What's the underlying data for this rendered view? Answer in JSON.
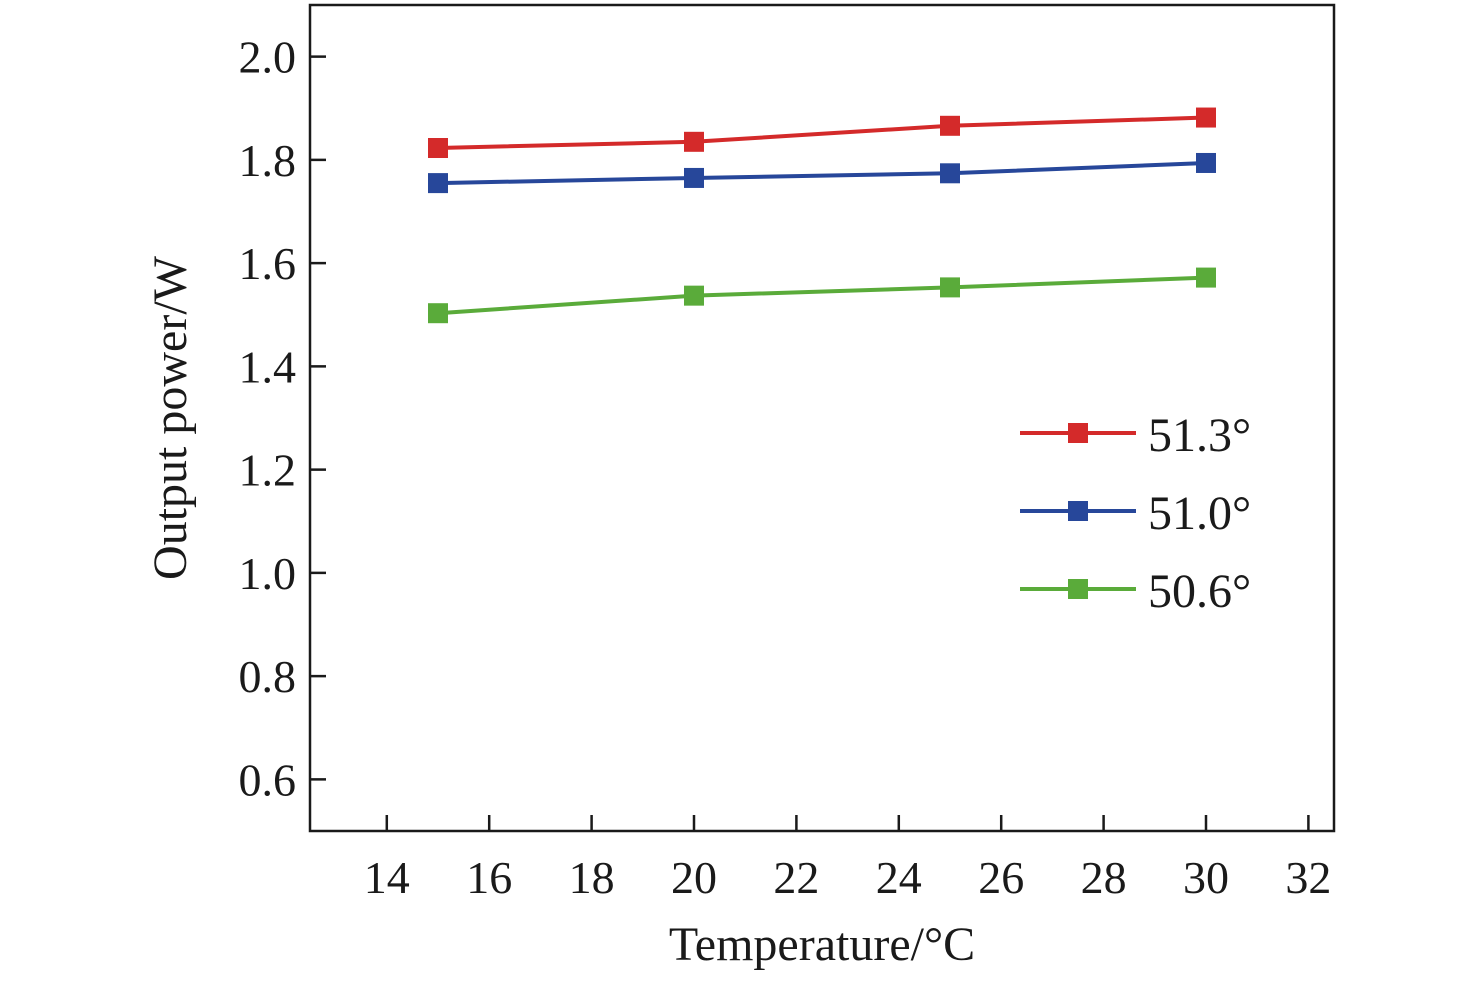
{
  "chart_data": {
    "type": "line",
    "title": "",
    "xlabel": "Temperature/°C",
    "ylabel": "Output power/W",
    "xlim": [
      12.5,
      32.5
    ],
    "ylim": [
      0.5,
      2.1
    ],
    "x_ticks": [
      14,
      16,
      18,
      20,
      22,
      24,
      26,
      28,
      30,
      32
    ],
    "x_tick_labels": [
      "14",
      "16",
      "18",
      "20",
      "22",
      "24",
      "26",
      "28",
      "30",
      "32"
    ],
    "y_ticks": [
      0.6,
      0.8,
      1.0,
      1.2,
      1.4,
      1.6,
      1.8,
      2.0
    ],
    "y_tick_labels": [
      "0.6",
      "0.8",
      "1.0",
      "1.2",
      "1.4",
      "1.6",
      "1.8",
      "2.0"
    ],
    "grid": false,
    "legend_position": "center-right",
    "x": [
      15,
      20,
      25,
      30
    ],
    "series": [
      {
        "name": "51.3°",
        "color": "#d42a2a",
        "values": [
          1.823,
          1.835,
          1.866,
          1.882
        ]
      },
      {
        "name": "51.0°",
        "color": "#27479a",
        "values": [
          1.755,
          1.765,
          1.774,
          1.794
        ]
      },
      {
        "name": "50.6°",
        "color": "#5aab3a",
        "values": [
          1.503,
          1.537,
          1.553,
          1.572
        ]
      }
    ]
  }
}
